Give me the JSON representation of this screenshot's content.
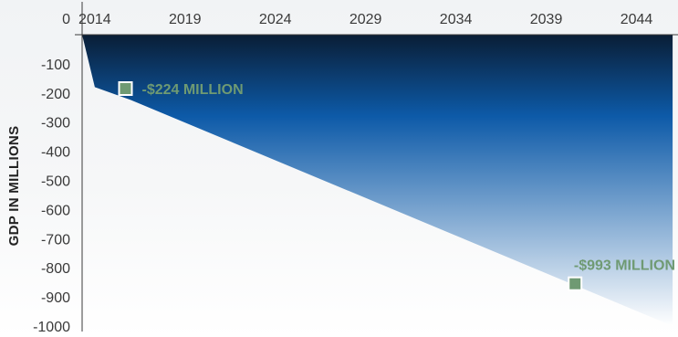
{
  "chart_data": {
    "type": "area",
    "title": "",
    "xlabel": "",
    "ylabel": "GDP IN MILLIONS",
    "x_ticks": [
      2014,
      2019,
      2024,
      2029,
      2034,
      2039,
      2044
    ],
    "y_ticks": [
      0,
      -100,
      -200,
      -300,
      -400,
      -500,
      -600,
      -700,
      -800,
      -900,
      -1000
    ],
    "xlim": [
      2013.3,
      2046.3
    ],
    "ylim": [
      -1000,
      0
    ],
    "series": [
      {
        "x": [
          2013.3,
          2014,
          2016,
          2046
        ],
        "y": [
          0,
          -180,
          -224,
          -1000
        ]
      }
    ],
    "markers": [
      {
        "x": 2015.7,
        "y": -185,
        "label": "-$224 MILLION"
      },
      {
        "x": 2040.6,
        "y": -855,
        "label": "-$993 MILLION"
      }
    ],
    "colors": {
      "area_top": "#0a1e36",
      "area_mid": "#0d5aa8",
      "area_bottom": "#ffffff",
      "marker": "#6f9a73",
      "label": "#6f9a73",
      "axis": "#3a3a3a"
    },
    "grid": false,
    "legend": "none"
  }
}
